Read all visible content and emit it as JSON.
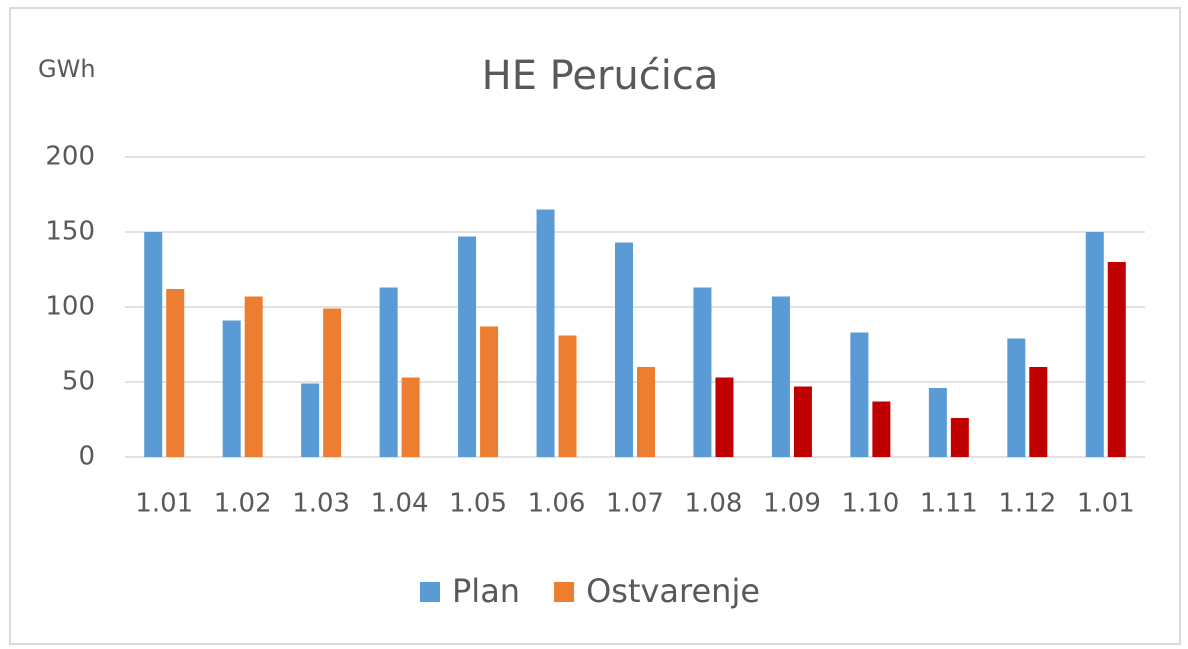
{
  "chart_data": {
    "type": "bar",
    "title": "HE Perućica",
    "y_label": "GWh",
    "categories": [
      "1.01",
      "1.02",
      "1.03",
      "1.04",
      "1.05",
      "1.06",
      "1.07",
      "1.08",
      "1.09",
      "1.10",
      "1.11",
      "1.12",
      "1.01"
    ],
    "series": [
      {
        "name": "Plan",
        "color": "#5b9bd5",
        "values": [
          150,
          91,
          49,
          113,
          147,
          165,
          143,
          113,
          107,
          83,
          46,
          79,
          150
        ]
      },
      {
        "name": "Ostvarenje",
        "color": "#ed7d31",
        "colors": [
          "#ed7d31",
          "#ed7d31",
          "#ed7d31",
          "#ed7d31",
          "#ed7d31",
          "#ed7d31",
          "#ed7d31",
          "#c00000",
          "#c00000",
          "#c00000",
          "#c00000",
          "#c00000",
          "#c00000"
        ],
        "values": [
          112,
          107,
          99,
          53,
          87,
          81,
          60,
          53,
          47,
          37,
          26,
          60,
          130
        ]
      }
    ],
    "ylim": [
      0,
      200
    ],
    "yticks": [
      0,
      50,
      100,
      150,
      200
    ],
    "grid": true,
    "legend": "bottom"
  }
}
